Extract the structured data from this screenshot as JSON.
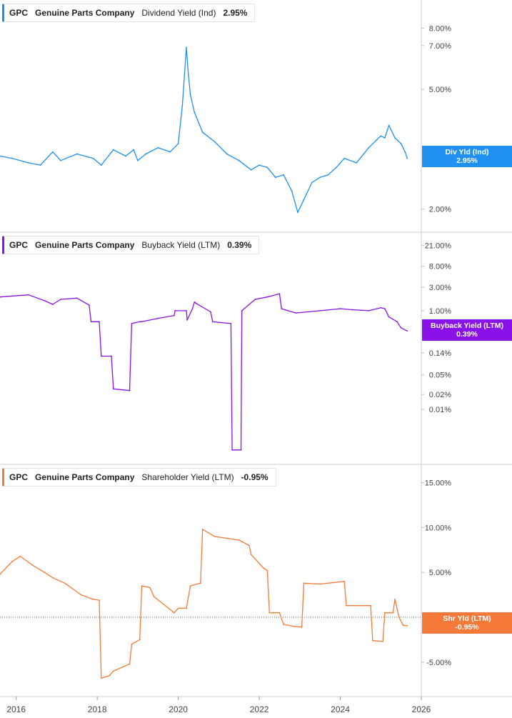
{
  "chart_data": [
    {
      "type": "line",
      "ticker": "GPC",
      "company": "Genuine Parts Company",
      "metric": "Dividend Yield (Ind)",
      "current_label": "2.95%",
      "flag_name": "Div Yld (Ind)",
      "flag_value": "2.95%",
      "color": "#1f8ff0",
      "scale": "log",
      "ylim": [
        1.75,
        9.5
      ],
      "yticks": [
        {
          "label": "8.00%",
          "value": 8.0
        },
        {
          "label": "7.00%",
          "value": 7.0
        },
        {
          "label": "5.00%",
          "value": 5.0
        },
        {
          "label": "2.00%",
          "value": 2.0
        }
      ],
      "x": [
        2015.6,
        2015.9,
        2016.3,
        2016.6,
        2016.9,
        2017.1,
        2017.5,
        2017.9,
        2018.1,
        2018.4,
        2018.7,
        2018.9,
        2019.0,
        2019.2,
        2019.5,
        2019.8,
        2020.0,
        2020.1,
        2020.2,
        2020.25,
        2020.3,
        2020.4,
        2020.6,
        2020.9,
        2021.2,
        2021.5,
        2021.8,
        2022.0,
        2022.2,
        2022.4,
        2022.6,
        2022.8,
        2022.95,
        2023.1,
        2023.3,
        2023.5,
        2023.7,
        2023.9,
        2024.1,
        2024.4,
        2024.7,
        2024.9,
        2025.0,
        2025.1,
        2025.2,
        2025.35,
        2025.5,
        2025.6,
        2025.65
      ],
      "values": [
        3.0,
        2.95,
        2.85,
        2.8,
        3.1,
        2.9,
        3.05,
        2.95,
        2.8,
        3.15,
        3.0,
        3.15,
        2.9,
        3.05,
        3.2,
        3.1,
        3.3,
        4.4,
        6.9,
        5.6,
        4.8,
        4.2,
        3.6,
        3.35,
        3.05,
        2.9,
        2.7,
        2.8,
        2.75,
        2.55,
        2.6,
        2.3,
        1.95,
        2.15,
        2.45,
        2.55,
        2.6,
        2.75,
        2.95,
        2.85,
        3.2,
        3.4,
        3.5,
        3.45,
        3.8,
        3.45,
        3.3,
        3.1,
        2.95
      ]
    },
    {
      "type": "line",
      "ticker": "GPC",
      "company": "Genuine Parts Company",
      "metric": "Buyback Yield (LTM)",
      "current_label": "0.39%",
      "flag_name": "Buyback Yield (LTM)",
      "flag_value": "0.39%",
      "color": "#8a12e8",
      "scale": "log",
      "ylim": [
        0.001,
        30.0
      ],
      "yticks": [
        {
          "label": "21.00%",
          "value": 21.0
        },
        {
          "label": "8.00%",
          "value": 8.0
        },
        {
          "label": "3.00%",
          "value": 3.0
        },
        {
          "label": "1.00%",
          "value": 1.0
        },
        {
          "label": "0.14%",
          "value": 0.14
        },
        {
          "label": "0.05%",
          "value": 0.05
        },
        {
          "label": "0.02%",
          "value": 0.02
        },
        {
          "label": "0.01%",
          "value": 0.01
        }
      ],
      "x": [
        2015.6,
        2016.3,
        2016.7,
        2016.9,
        2017.1,
        2017.5,
        2017.8,
        2017.85,
        2018.05,
        2018.1,
        2018.35,
        2018.4,
        2018.8,
        2018.85,
        2019.05,
        2019.1,
        2019.5,
        2019.9,
        2019.92,
        2020.2,
        2020.22,
        2020.35,
        2020.4,
        2020.45,
        2020.8,
        2020.85,
        2021.3,
        2021.33,
        2021.55,
        2021.57,
        2021.9,
        2022.2,
        2022.5,
        2022.55,
        2022.9,
        2023.5,
        2024.0,
        2024.3,
        2024.7,
        2025.0,
        2025.1,
        2025.2,
        2025.4,
        2025.5,
        2025.65
      ],
      "values": [
        1.9,
        2.1,
        1.6,
        1.35,
        1.7,
        1.8,
        1.3,
        0.6,
        0.6,
        0.12,
        0.12,
        0.026,
        0.024,
        0.55,
        0.6,
        0.6,
        0.7,
        0.8,
        1.0,
        1.0,
        0.65,
        1.1,
        1.5,
        1.4,
        0.95,
        0.6,
        0.55,
        0.0015,
        0.0015,
        1.0,
        1.7,
        1.9,
        2.2,
        1.1,
        0.9,
        1.0,
        1.1,
        1.05,
        1.0,
        1.15,
        1.1,
        0.75,
        0.6,
        0.45,
        0.39
      ]
    },
    {
      "type": "line",
      "ticker": "GPC",
      "company": "Genuine Parts Company",
      "metric": "Shareholder Yield (LTM)",
      "current_label": "-0.95%",
      "flag_name": "Shr Yld (LTM)",
      "flag_value": "-0.95%",
      "color": "#f57a3a",
      "scale": "linear",
      "ylim": [
        -8.2,
        16.4
      ],
      "yticks": [
        {
          "label": "15.00%",
          "value": 15.0
        },
        {
          "label": "10.00%",
          "value": 10.0
        },
        {
          "label": "5.00%",
          "value": 5.0
        },
        {
          "label": "-5.00%",
          "value": -5.0
        }
      ],
      "zero_line": true,
      "x": [
        2015.6,
        2015.9,
        2016.1,
        2016.4,
        2016.7,
        2016.9,
        2017.2,
        2017.6,
        2017.9,
        2018.05,
        2018.1,
        2018.3,
        2018.4,
        2018.8,
        2018.85,
        2019.05,
        2019.1,
        2019.3,
        2019.4,
        2019.9,
        2020.0,
        2020.2,
        2020.3,
        2020.55,
        2020.6,
        2020.9,
        2021.2,
        2021.5,
        2021.75,
        2021.8,
        2022.1,
        2022.2,
        2022.25,
        2022.5,
        2022.6,
        2022.85,
        2023.05,
        2023.1,
        2023.5,
        2024.1,
        2024.15,
        2024.5,
        2024.75,
        2024.8,
        2025.05,
        2025.1,
        2025.3,
        2025.35,
        2025.45,
        2025.55,
        2025.65
      ],
      "values": [
        4.8,
        6.2,
        6.8,
        5.8,
        5.0,
        4.4,
        3.8,
        2.5,
        2.0,
        1.9,
        -6.8,
        -6.5,
        -6.0,
        -5.2,
        -3.0,
        -2.5,
        3.5,
        3.3,
        2.3,
        0.5,
        1.0,
        1.0,
        3.5,
        3.8,
        9.8,
        9.0,
        8.8,
        8.6,
        8.0,
        7.0,
        5.5,
        5.2,
        0.5,
        0.5,
        -0.8,
        -1.0,
        -1.1,
        3.8,
        3.7,
        4.0,
        1.3,
        1.3,
        1.3,
        -2.6,
        -2.7,
        0.5,
        0.5,
        2.0,
        0.0,
        -0.9,
        -0.95
      ]
    }
  ],
  "x_axis": {
    "ticks": [
      {
        "label": "2016",
        "value": 2016
      },
      {
        "label": "2018",
        "value": 2018
      },
      {
        "label": "2020",
        "value": 2020
      },
      {
        "label": "2022",
        "value": 2022
      },
      {
        "label": "2024",
        "value": 2024
      },
      {
        "label": "2026",
        "value": 2026
      }
    ],
    "xlim": [
      2015.6,
      2026.0
    ]
  },
  "colors": {
    "grid": "#d8d8d8",
    "axis_text": "#444444",
    "zero_line": "#555555"
  }
}
